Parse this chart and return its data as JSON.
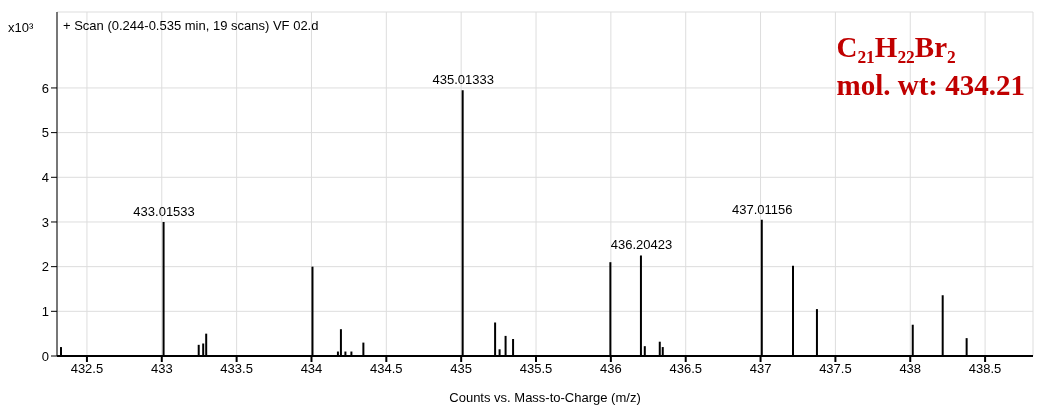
{
  "chart_data": {
    "type": "bar",
    "title": "+ Scan (0.244-0.535 min, 19 scans) VF 02.d",
    "xlabel": "Counts vs. Mass-to-Charge (m/z)",
    "ylabel": "x10³",
    "x": [
      432.33,
      433.01533,
      433.25,
      433.28,
      433.3,
      434.01,
      434.18,
      434.2,
      434.23,
      434.27,
      434.35,
      435.01333,
      435.23,
      435.26,
      435.3,
      435.35,
      436.0,
      436.20423,
      436.23,
      436.33,
      436.35,
      437.01156,
      437.22,
      437.38,
      438.02,
      438.22,
      438.38
    ],
    "values": [
      0.2,
      3.0,
      0.25,
      0.28,
      0.5,
      2.0,
      0.1,
      0.6,
      0.1,
      0.1,
      0.3,
      5.95,
      0.75,
      0.15,
      0.45,
      0.38,
      2.1,
      2.25,
      0.22,
      0.32,
      0.2,
      3.05,
      2.02,
      1.05,
      0.7,
      1.36,
      0.4
    ],
    "color": "#000000",
    "xlim": [
      432.3,
      438.82
    ],
    "xticks": [
      432.5,
      433,
      433.5,
      434,
      434.5,
      435,
      435.5,
      436,
      436.5,
      437,
      437.5,
      438,
      438.5
    ],
    "ylim": [
      0,
      7.7
    ],
    "yticks": [
      0,
      1,
      2,
      3,
      4,
      5,
      6
    ],
    "grid": true,
    "annotations": [
      {
        "text": "433.01533",
        "x": 433.01533,
        "y": 3.0
      },
      {
        "text": "435.01333",
        "x": 435.01333,
        "y": 5.95
      },
      {
        "text": "436.20423",
        "x": 436.20423,
        "y": 2.25
      },
      {
        "text": "437.01156",
        "x": 437.01156,
        "y": 3.05
      },
      "C₂₁H₂₂Br₂",
      "mol. wt: 434.21"
    ]
  }
}
